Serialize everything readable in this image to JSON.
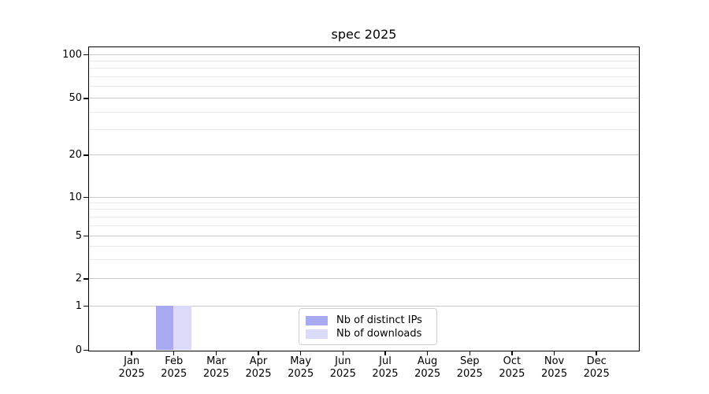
{
  "chart_data": {
    "type": "bar",
    "title": "spec 2025",
    "xlabel": "",
    "ylabel": "",
    "categories": [
      "Jan 2025",
      "Feb 2025",
      "Mar 2025",
      "Apr 2025",
      "May 2025",
      "Jun 2025",
      "Jul 2025",
      "Aug 2025",
      "Sep 2025",
      "Oct 2025",
      "Nov 2025",
      "Dec 2025"
    ],
    "series": [
      {
        "name": "Nb of distinct IPs",
        "color": "#a9a9f2",
        "values": [
          0,
          1,
          0,
          0,
          0,
          0,
          0,
          0,
          0,
          0,
          0,
          0
        ]
      },
      {
        "name": "Nb of downloads",
        "color": "#dbdbf9",
        "values": [
          0,
          1,
          0,
          0,
          0,
          0,
          0,
          0,
          0,
          0,
          0,
          0
        ]
      }
    ],
    "y_axis": {
      "scale": "log-above-1-linear-below",
      "major_ticks": [
        0,
        1,
        2,
        5,
        10,
        20,
        50,
        100
      ],
      "minor_ticks": [
        3,
        4,
        6,
        7,
        8,
        9,
        30,
        40,
        60,
        70,
        80,
        90
      ],
      "range": [
        0,
        113
      ]
    },
    "grid": {
      "major_color": "#c9c9c9",
      "minor_color": "#e9e9e9",
      "visible": true
    },
    "legend": {
      "position": "lower-center"
    }
  }
}
